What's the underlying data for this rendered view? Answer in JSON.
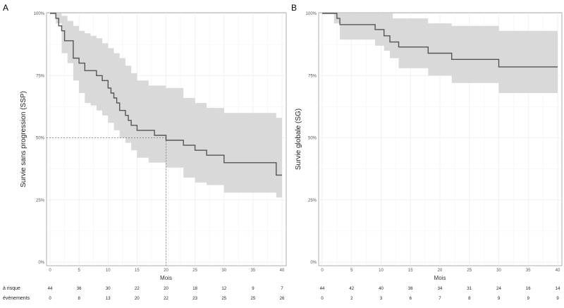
{
  "chart_data": [
    {
      "type": "line",
      "panel": "A",
      "xlabel": "Mois",
      "ylabel": "Survie sans progression (SSP)",
      "xlim": [
        0,
        40
      ],
      "ylim": [
        0,
        1
      ],
      "x_ticks": [
        "0",
        "5",
        "10",
        "15",
        "20",
        "25",
        "30",
        "35",
        "40"
      ],
      "y_ticks": [
        "0%",
        "25%",
        "50%",
        "75%",
        "100%"
      ],
      "grid": true,
      "confidence_band": true,
      "median_reference": {
        "x": 20,
        "y": 0.5
      },
      "curve": [
        [
          0,
          1.0
        ],
        [
          0.5,
          1.0
        ],
        [
          1,
          0.98
        ],
        [
          1.5,
          0.95
        ],
        [
          2,
          0.93
        ],
        [
          2.5,
          0.89
        ],
        [
          4,
          0.82
        ],
        [
          5,
          0.8
        ],
        [
          6,
          0.77
        ],
        [
          7.5,
          0.77
        ],
        [
          8,
          0.75
        ],
        [
          9,
          0.73
        ],
        [
          10,
          0.7
        ],
        [
          10.5,
          0.68
        ],
        [
          11,
          0.66
        ],
        [
          11.5,
          0.64
        ],
        [
          12,
          0.61
        ],
        [
          13,
          0.59
        ],
        [
          13.5,
          0.57
        ],
        [
          14,
          0.55
        ],
        [
          15,
          0.53
        ],
        [
          17.5,
          0.53
        ],
        [
          18,
          0.51
        ],
        [
          20,
          0.51
        ],
        [
          20,
          0.49
        ],
        [
          23,
          0.49
        ],
        [
          23,
          0.47
        ],
        [
          25,
          0.47
        ],
        [
          25,
          0.45
        ],
        [
          27,
          0.45
        ],
        [
          27,
          0.43
        ],
        [
          30,
          0.43
        ],
        [
          30,
          0.4
        ],
        [
          39,
          0.4
        ],
        [
          39,
          0.35
        ],
        [
          40,
          0.35
        ]
      ],
      "ci_upper": [
        [
          0,
          1.0
        ],
        [
          1,
          1.0
        ],
        [
          2,
          0.99
        ],
        [
          3,
          0.97
        ],
        [
          4,
          0.95
        ],
        [
          5,
          0.93
        ],
        [
          6,
          0.92
        ],
        [
          7,
          0.91
        ],
        [
          8,
          0.9
        ],
        [
          9,
          0.88
        ],
        [
          10,
          0.86
        ],
        [
          11,
          0.84
        ],
        [
          12,
          0.82
        ],
        [
          13,
          0.79
        ],
        [
          14,
          0.76
        ],
        [
          15,
          0.73
        ],
        [
          17,
          0.71
        ],
        [
          20,
          0.7
        ],
        [
          23,
          0.66
        ],
        [
          25,
          0.64
        ],
        [
          27,
          0.62
        ],
        [
          30,
          0.6
        ],
        [
          39,
          0.58
        ],
        [
          40,
          0.55
        ]
      ],
      "ci_lower": [
        [
          0,
          1.0
        ],
        [
          1,
          0.96
        ],
        [
          2,
          0.84
        ],
        [
          3,
          0.8
        ],
        [
          4,
          0.73
        ],
        [
          5,
          0.68
        ],
        [
          6,
          0.64
        ],
        [
          7,
          0.63
        ],
        [
          8,
          0.61
        ],
        [
          9,
          0.59
        ],
        [
          10,
          0.56
        ],
        [
          11,
          0.53
        ],
        [
          12,
          0.5
        ],
        [
          13,
          0.48
        ],
        [
          14,
          0.45
        ],
        [
          15,
          0.42
        ],
        [
          17,
          0.4
        ],
        [
          20,
          0.38
        ],
        [
          23,
          0.34
        ],
        [
          25,
          0.32
        ],
        [
          27,
          0.31
        ],
        [
          30,
          0.28
        ],
        [
          39,
          0.26
        ],
        [
          40,
          0.22
        ]
      ],
      "risk_table": {
        "rows": [
          {
            "label": "à risque",
            "values": [
              "44",
              "36",
              "30",
              "22",
              "20",
              "18",
              "12",
              "9",
              "7"
            ]
          },
          {
            "label": "évènements",
            "values": [
              "0",
              "8",
              "13",
              "20",
              "22",
              "23",
              "25",
              "25",
              "26"
            ]
          }
        ]
      }
    },
    {
      "type": "line",
      "panel": "B",
      "xlabel": "Mois",
      "ylabel": "Survie globale (SG)",
      "xlim": [
        0,
        40
      ],
      "ylim": [
        0,
        1
      ],
      "x_ticks": [
        "0",
        "5",
        "10",
        "15",
        "20",
        "25",
        "30",
        "35",
        "40"
      ],
      "y_ticks": [
        "0%",
        "25%",
        "50%",
        "75%",
        "100%"
      ],
      "grid": true,
      "confidence_band": true,
      "curve": [
        [
          0,
          1.0
        ],
        [
          2,
          1.0
        ],
        [
          2.5,
          0.98
        ],
        [
          3,
          0.955
        ],
        [
          9,
          0.955
        ],
        [
          9,
          0.935
        ],
        [
          10.5,
          0.935
        ],
        [
          10.5,
          0.91
        ],
        [
          11.5,
          0.91
        ],
        [
          11.5,
          0.885
        ],
        [
          13,
          0.885
        ],
        [
          13,
          0.865
        ],
        [
          18,
          0.865
        ],
        [
          18,
          0.84
        ],
        [
          22,
          0.84
        ],
        [
          22,
          0.815
        ],
        [
          30,
          0.815
        ],
        [
          30,
          0.785
        ],
        [
          40,
          0.785
        ]
      ],
      "ci_upper": [
        [
          0,
          1.0
        ],
        [
          2,
          1.0
        ],
        [
          3,
          1.0
        ],
        [
          9,
          1.0
        ],
        [
          12,
          0.98
        ],
        [
          18,
          0.96
        ],
        [
          22,
          0.95
        ],
        [
          30,
          0.93
        ],
        [
          40,
          0.92
        ]
      ],
      "ci_lower": [
        [
          0,
          1.0
        ],
        [
          2,
          0.96
        ],
        [
          3,
          0.895
        ],
        [
          9,
          0.87
        ],
        [
          10.5,
          0.85
        ],
        [
          11.5,
          0.82
        ],
        [
          13,
          0.78
        ],
        [
          18,
          0.75
        ],
        [
          22,
          0.72
        ],
        [
          30,
          0.68
        ],
        [
          40,
          0.67
        ]
      ],
      "risk_table": {
        "rows": [
          {
            "label": "à risque",
            "values": [
              "44",
              "42",
              "40",
              "36",
              "34",
              "31",
              "24",
              "16",
              "14"
            ]
          },
          {
            "label": "évènements",
            "values": [
              "0",
              "2",
              "3",
              "6",
              "7",
              "8",
              "9",
              "9",
              "9"
            ]
          }
        ]
      }
    }
  ],
  "colors": {
    "curve": "#555555",
    "band": "#d9d9d9",
    "grid": "#ececec",
    "axis": "#999999",
    "reference": "#777777"
  }
}
